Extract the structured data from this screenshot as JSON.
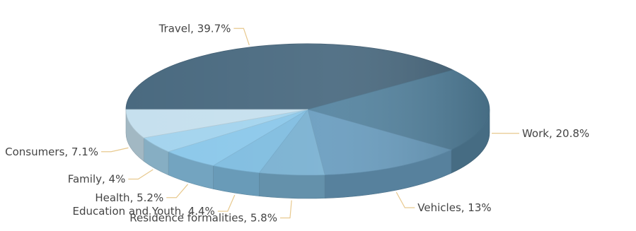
{
  "chart_data": {
    "type": "pie",
    "style": "3d",
    "title": "",
    "slices": [
      {
        "label": "Travel",
        "value": 39.7,
        "text": "Travel, 39.7%",
        "color": "#4a6a80"
      },
      {
        "label": "Work",
        "value": 20.8,
        "text": "Work, 20.8%",
        "color": "#5584a0"
      },
      {
        "label": "Vehicles",
        "value": 13,
        "text": "Vehicles, 13%",
        "color": "#6a9dbf"
      },
      {
        "label": "Residence formalities",
        "value": 5.8,
        "text": "Residence formalities, 5.8%",
        "color": "#7ab1d1"
      },
      {
        "label": "Education and Youth",
        "value": 4.4,
        "text": "Education and Youth, 4.4%",
        "color": "#80bde0"
      },
      {
        "label": "Health",
        "value": 5.2,
        "text": "Health, 5.2%",
        "color": "#8cc8ea"
      },
      {
        "label": "Family",
        "value": 4,
        "text": "Family, 4%",
        "color": "#a4d4ee"
      },
      {
        "label": "Consumers",
        "value": 7.1,
        "text": "Consumers, 7.1%",
        "color": "#c6e0ee"
      }
    ]
  }
}
